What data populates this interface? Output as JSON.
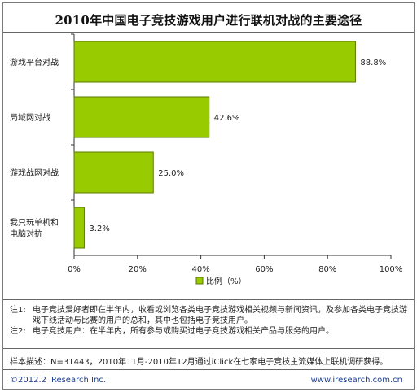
{
  "title": "2010年中国电子竞技游戏用户进行联机对战的主要途径",
  "colors": {
    "bar": "#99cc00",
    "bar_stroke": "#5a7a00"
  },
  "chart_data": {
    "type": "bar",
    "orientation": "horizontal",
    "categories": [
      "游戏平台对战",
      "局域网对战",
      "游戏战网对战",
      "我只玩单机和\n电脑对抗"
    ],
    "series": [
      {
        "name": "比例（%）",
        "values": [
          88.8,
          42.6,
          25.0,
          3.2
        ]
      }
    ],
    "data_labels": [
      "88.8%",
      "42.6%",
      "25.0%",
      "3.2%"
    ],
    "xlim": [
      0,
      100
    ],
    "x_ticks": [
      "0%",
      "20%",
      "40%",
      "60%",
      "80%",
      "100%"
    ],
    "x_tick_values": [
      0,
      20,
      40,
      60,
      80,
      100
    ],
    "legend": "bottom",
    "grid": false
  },
  "legend_label": "比例（%）",
  "notes": [
    {
      "tag": "注1:",
      "text": "电子竞技爱好者即在半年内，收看或浏览各类电子竞技游戏相关视频与新闻资讯，及参加各类电子竞技游戏下线活动与比赛的用户的总和，其中也包括电子竞技用户。"
    },
    {
      "tag": "注2:",
      "text": "电子竞技用户：在半年内，所有参与或购买过电子竞技游戏相关产品与服务的用户。"
    }
  ],
  "sample": "样本描述：N=31443，2010年11月-2010年12月通过iClick在七家电子竞技主流媒体上联机调研获得。",
  "copyright": "©2012.2 iResearch Inc.",
  "website": "www.iresearch.com.cn"
}
